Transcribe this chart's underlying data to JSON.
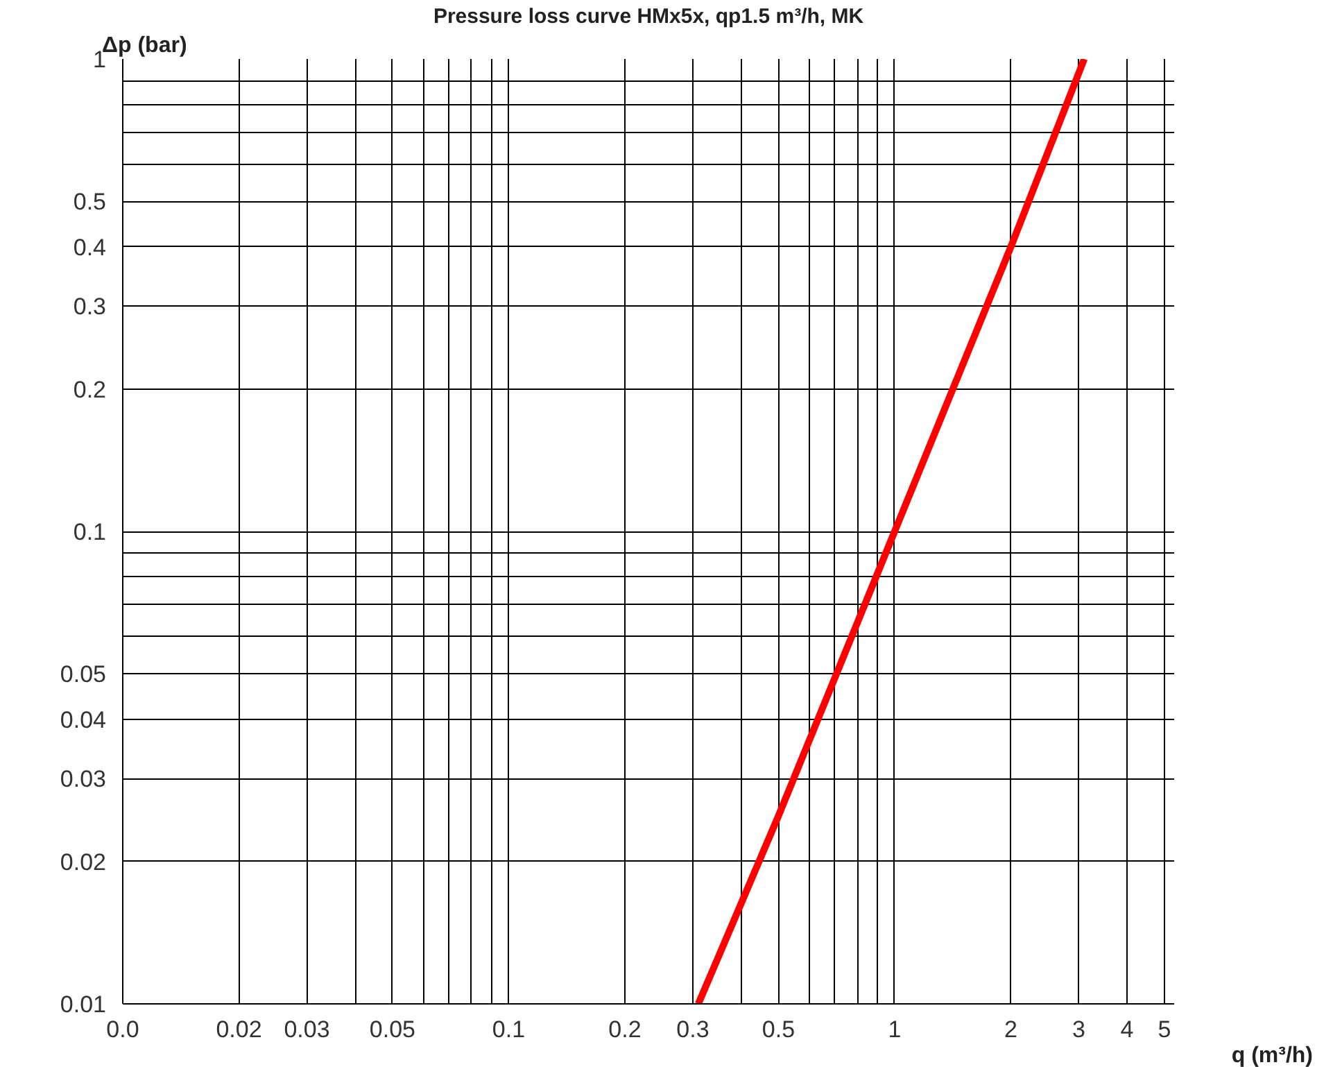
{
  "chart_data": {
    "type": "line",
    "title": "Pressure loss curve HMx5x, qp1.5 m³/h, MK",
    "xlabel": "q (m³/h)",
    "ylabel": "Δp (bar)",
    "log": "xy",
    "grid": true,
    "marker": "none",
    "line_style": "solid",
    "xlim": [
      0.01,
      5.3
    ],
    "ylim": [
      0.01,
      1.0
    ],
    "xticks": [
      {
        "value": 0.01,
        "label": "0.0"
      },
      0.02,
      0.03,
      {
        "value": 0.04,
        "label": null
      },
      0.05,
      {
        "value": 0.06,
        "label": null
      },
      {
        "value": 0.07,
        "label": null
      },
      {
        "value": 0.08,
        "label": null
      },
      {
        "value": 0.09,
        "label": null
      },
      0.1,
      0.2,
      0.3,
      {
        "value": 0.4,
        "label": null
      },
      0.5,
      {
        "value": 0.6,
        "label": null
      },
      {
        "value": 0.7,
        "label": null
      },
      {
        "value": 0.8,
        "label": null
      },
      {
        "value": 0.9,
        "label": null
      },
      1,
      2,
      3,
      4,
      5
    ],
    "yticks": [
      0.01,
      0.02,
      0.03,
      0.04,
      0.05,
      {
        "value": 0.06,
        "label": null
      },
      {
        "value": 0.07,
        "label": null
      },
      {
        "value": 0.08,
        "label": null
      },
      {
        "value": 0.09,
        "label": null
      },
      0.1,
      0.2,
      0.3,
      0.4,
      0.5,
      {
        "value": 0.6,
        "label": null
      },
      {
        "value": 0.7,
        "label": null
      },
      {
        "value": 0.8,
        "label": null
      },
      {
        "value": 0.9,
        "label": null
      },
      1
    ],
    "series": [
      {
        "color": "#ff0000",
        "x": [
          0.31,
          0.5,
          1,
          2,
          3.1
        ],
        "values": [
          0.01,
          0.025,
          0.1,
          0.4,
          1.0
        ]
      }
    ]
  }
}
